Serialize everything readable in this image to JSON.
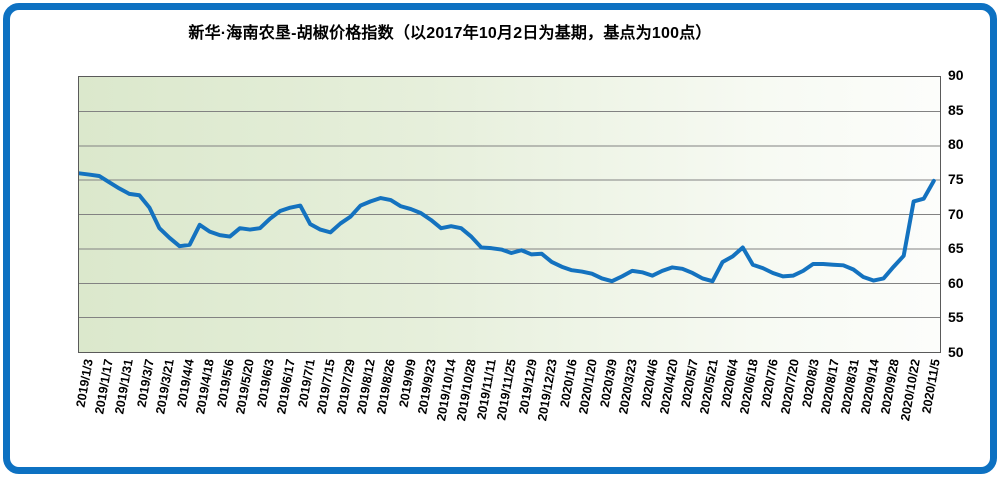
{
  "title": "新华·海南农垦-胡椒价格指数（以2017年10月2日为基期，基点为100点）",
  "colors": {
    "frame_blue": "#0d71c2",
    "line_blue": "#1472bf",
    "gridline_gray": "#828282",
    "plot_border_gray": "#5a5a5a",
    "plot_bg_green": "#dbe8cc",
    "plot_bg_white": "#fcfdfb",
    "text_black": "#000000"
  },
  "chart_data": {
    "type": "line",
    "title": "新华·海南农垦-胡椒价格指数（以2017年10月2日为基期，基点为100点）",
    "xlabel": "",
    "ylabel": "",
    "ylim": [
      50,
      90
    ],
    "y_ticks": [
      90,
      85,
      80,
      75,
      70,
      65,
      60,
      55,
      50
    ],
    "y_axis_side": "right",
    "grid": "horizontal",
    "legend": "none",
    "label_every_n_points": 2,
    "categories": [
      "2019/1/3",
      "2019/1/17",
      "2019/1/31",
      "2019/3/7",
      "2019/3/21",
      "2019/4/4",
      "2019/4/18",
      "2019/5/6",
      "2019/5/20",
      "2019/6/3",
      "2019/6/17",
      "2019/7/1",
      "2019/7/15",
      "2019/7/29",
      "2019/8/12",
      "2019/8/26",
      "2019/9/9",
      "2019/9/23",
      "2019/10/14",
      "2019/10/28",
      "2019/11/11",
      "2019/11/25",
      "2019/12/9",
      "2019/12/23",
      "2020/1/6",
      "2020/1/20",
      "2020/3/9",
      "2020/3/23",
      "2020/4/6",
      "2020/4/20",
      "2020/5/7",
      "2020/5/21",
      "2020/6/4",
      "2020/6/18",
      "2020/7/6",
      "2020/7/20",
      "2020/8/3",
      "2020/8/17",
      "2020/8/31",
      "2020/9/14",
      "2020/9/28",
      "2020/10/22",
      "2020/11/5"
    ],
    "values": [
      76.0,
      75.8,
      75.6,
      74.7,
      73.8,
      73.0,
      72.8,
      71.0,
      68.0,
      66.6,
      65.4,
      65.6,
      68.5,
      67.5,
      67.0,
      66.8,
      68.0,
      67.8,
      68.0,
      69.4,
      70.5,
      71.0,
      71.3,
      68.6,
      67.8,
      67.4,
      68.7,
      69.7,
      71.3,
      71.9,
      72.4,
      72.1,
      71.2,
      70.8,
      70.2,
      69.2,
      68.0,
      68.3,
      68.0,
      66.8,
      65.2,
      65.1,
      64.9,
      64.4,
      64.8,
      64.2,
      64.3,
      63.1,
      62.4,
      61.9,
      61.7,
      61.4,
      60.7,
      60.3,
      61.0,
      61.8,
      61.6,
      61.1,
      61.8,
      62.3,
      62.1,
      61.5,
      60.7,
      60.3,
      63.1,
      63.9,
      65.2,
      62.7,
      62.2,
      61.5,
      61.0,
      61.1,
      61.8,
      62.8,
      62.8,
      62.7,
      62.6,
      62.0,
      60.9,
      60.4,
      60.7,
      62.4,
      64.0,
      71.9,
      72.3,
      74.9
    ]
  }
}
